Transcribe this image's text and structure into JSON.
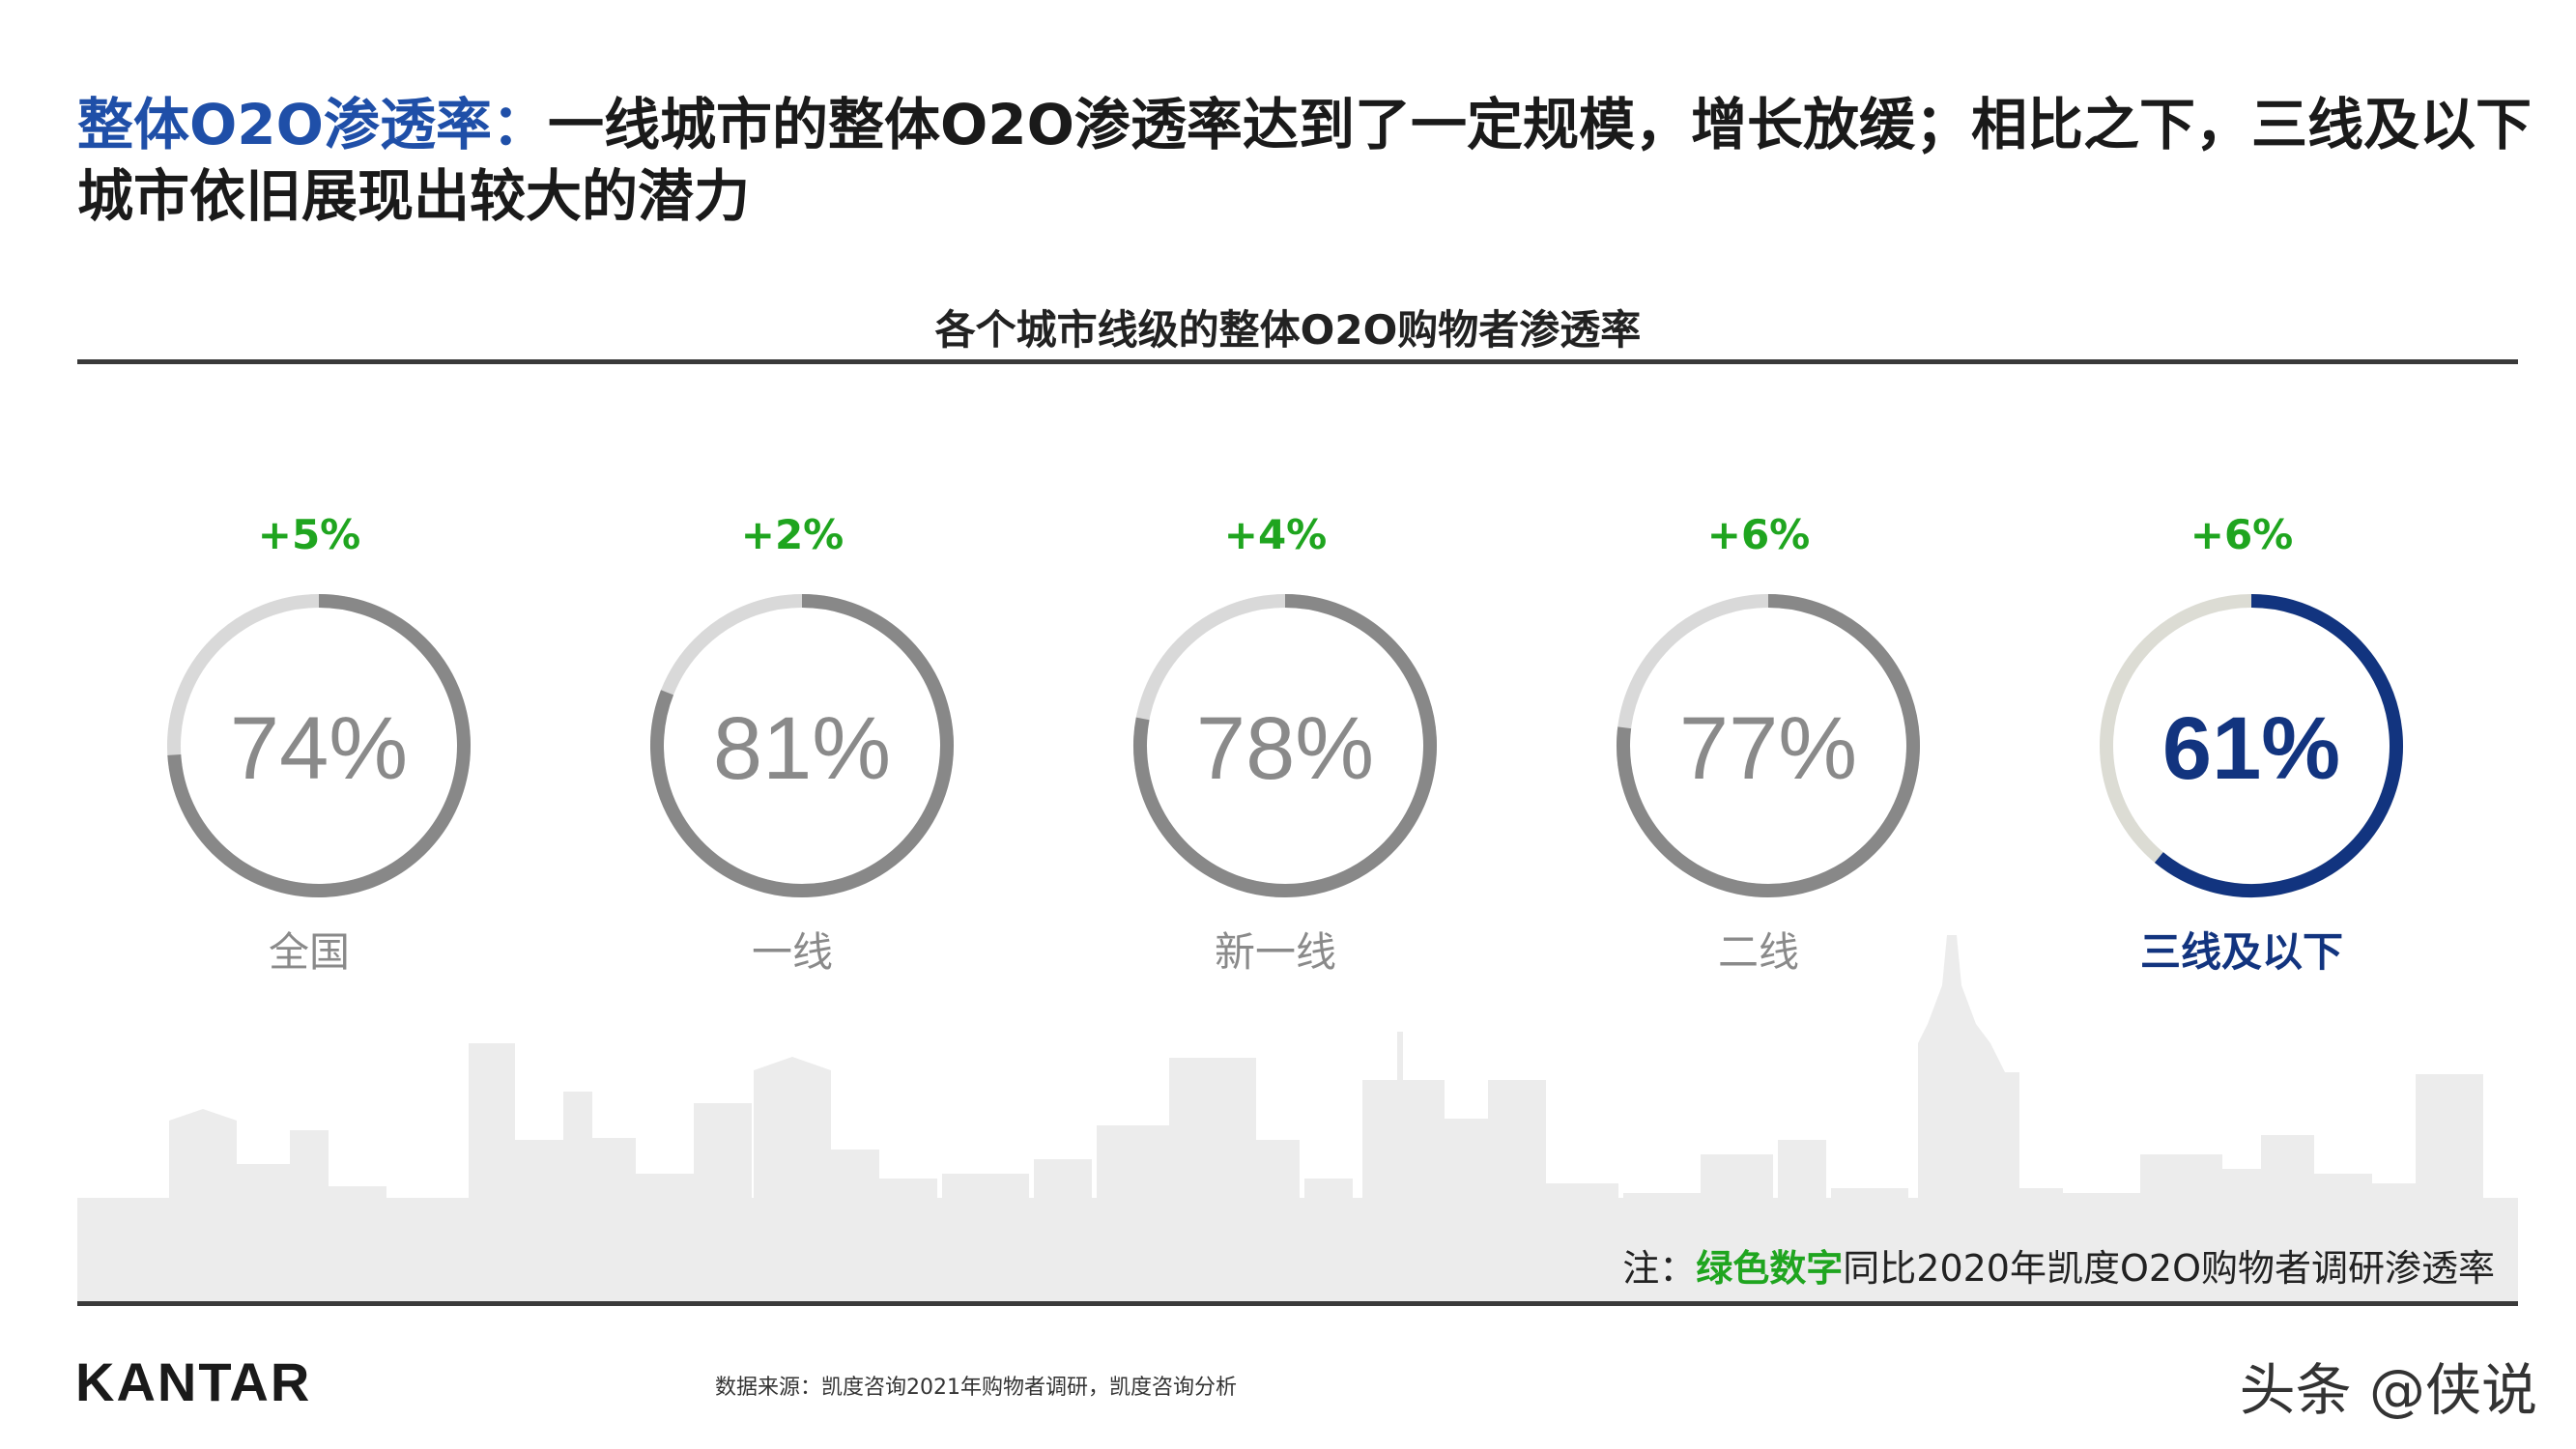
{
  "headline": {
    "accent": "整体O2O渗透率：",
    "text": "一线城市的整体O2O渗透率达到了一定规模，增长放缓；相比之下，三线及以下城市依旧展现出较大的潜力"
  },
  "chart_data": {
    "type": "donut",
    "title": "各个城市线级的整体O2O购物者渗透率",
    "categories": [
      "全国",
      "一线",
      "新一线",
      "二线",
      "三线及以下"
    ],
    "values": [
      74,
      81,
      78,
      77,
      61
    ],
    "value_labels": [
      "74%",
      "81%",
      "78%",
      "77%",
      "61%"
    ],
    "change_labels": [
      "+5%",
      "+2%",
      "+4%",
      "+6%",
      "+6%"
    ],
    "highlight_index": 4,
    "colors": {
      "track": "#d9d9d9",
      "ring": "#888888",
      "label": "#8a8a8a",
      "highlight": "#12347f",
      "highlight_track": "#dcdcd4",
      "change": "#1fa51f"
    }
  },
  "note": {
    "prefix": "注：",
    "green": "绿色数字",
    "suffix": "同比2020年凯度O2O购物者调研渗透率"
  },
  "footer": {
    "logo": "KANTAR",
    "source": "数据来源：凯度咨询2021年购物者调研，凯度咨询分析",
    "watermark": "头条 @侠说"
  }
}
